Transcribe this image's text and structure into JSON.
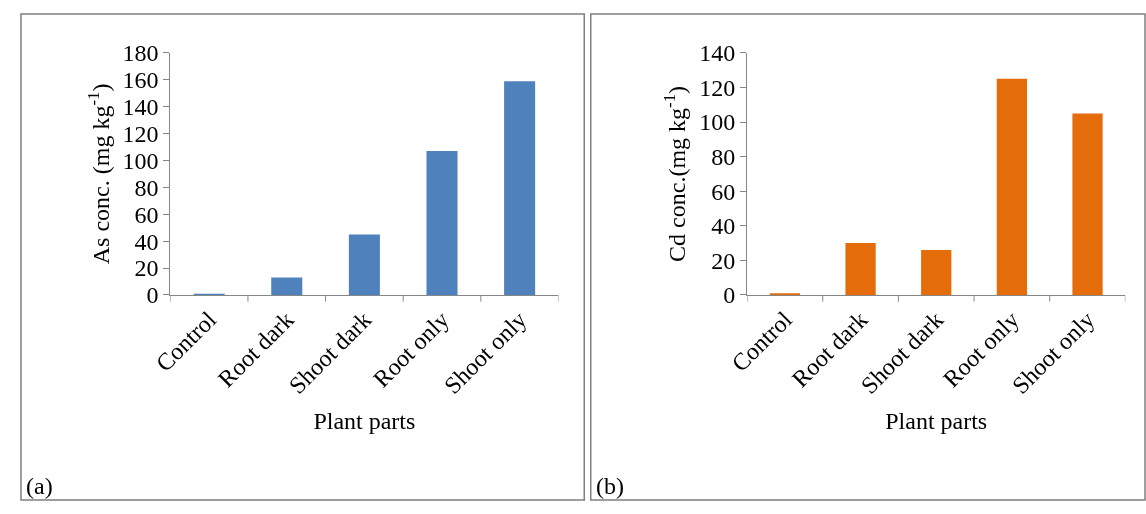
{
  "chart_data": [
    {
      "type": "bar",
      "xlabel": "Plant parts",
      "ylabel": "As conc. (mg kg$^{-1}$)",
      "categories": [
        "Control",
        "Root dark",
        "Shoot dark",
        "Root only",
        "Shoot only"
      ],
      "values": [
        1,
        13,
        45,
        107,
        159
      ],
      "color": "#4f81bd",
      "ylim": [
        0,
        180
      ],
      "yticks": [
        0,
        20,
        40,
        60,
        80,
        100,
        120,
        140,
        160,
        180
      ],
      "annotations": [
        "(a)"
      ]
    },
    {
      "type": "bar",
      "xlabel": "Plant parts",
      "ylabel": "Cd conc.(mg kg$^{-1}$)",
      "categories": [
        "Control",
        "Root dark",
        "Shoot dark",
        "Root only",
        "Shoot only"
      ],
      "values": [
        1,
        30,
        26,
        125,
        105
      ],
      "color": "#e46c0a",
      "ylim": [
        0,
        140
      ],
      "yticks": [
        0,
        20,
        40,
        60,
        80,
        100,
        120,
        140
      ],
      "annotations": [
        "(b)"
      ]
    }
  ]
}
